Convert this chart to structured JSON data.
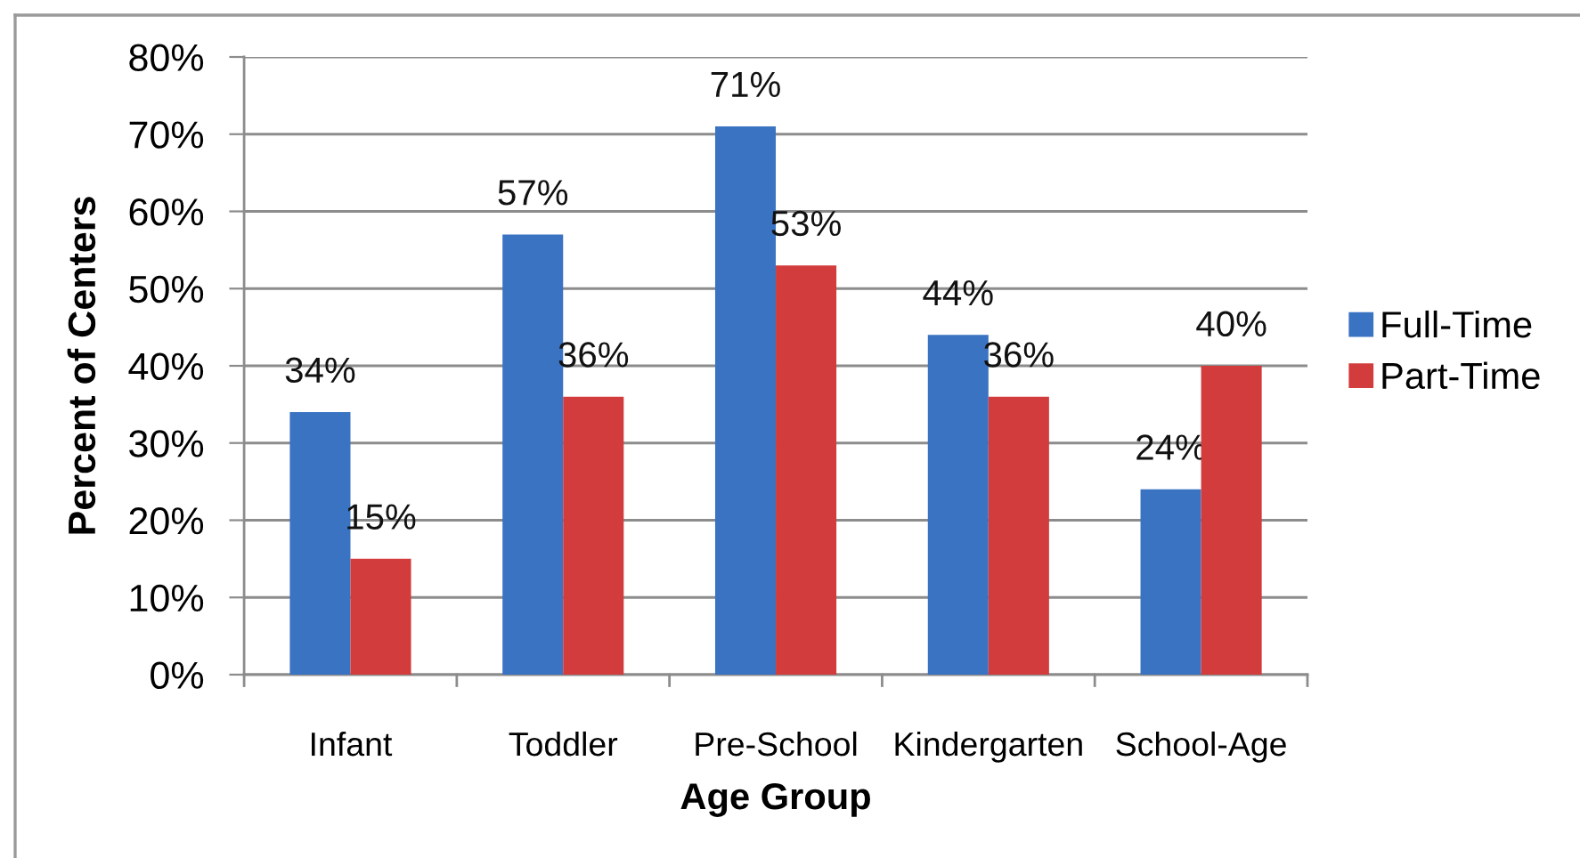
{
  "chart_data": {
    "type": "bar",
    "categories": [
      "Infant",
      "Toddler",
      "Pre-School",
      "Kindergarten",
      "School-Age"
    ],
    "series": [
      {
        "name": "Full-Time",
        "color": "#3a73c2",
        "values": [
          34,
          57,
          71,
          44,
          24
        ],
        "value_labels": [
          "34%",
          "57%",
          "71%",
          "44%",
          "24%"
        ]
      },
      {
        "name": "Part-Time",
        "color": "#d23c3c",
        "values": [
          15,
          36,
          53,
          36,
          40
        ],
        "value_labels": [
          "15%",
          "36%",
          "53%",
          "36%",
          "40%"
        ]
      }
    ],
    "xlabel": "Age Group",
    "ylabel": "Percent of Centers",
    "ylim": [
      0,
      80
    ],
    "yticks": [
      {
        "value": 0,
        "label": "0%"
      },
      {
        "value": 10,
        "label": "10%"
      },
      {
        "value": 20,
        "label": "20%"
      },
      {
        "value": 30,
        "label": "30%"
      },
      {
        "value": 40,
        "label": "40%"
      },
      {
        "value": 50,
        "label": "50%"
      },
      {
        "value": 60,
        "label": "60%"
      },
      {
        "value": 70,
        "label": "70%"
      },
      {
        "value": 80,
        "label": "80%"
      }
    ],
    "grid": "y",
    "legend": "right"
  }
}
